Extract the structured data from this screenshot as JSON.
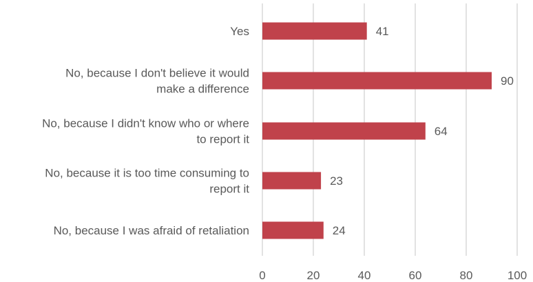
{
  "chart_data": {
    "type": "bar",
    "orientation": "horizontal",
    "categories": [
      [
        "Yes"
      ],
      [
        "No, because I don't believe it would",
        "make a difference"
      ],
      [
        "No, because I didn't know who or where",
        "to report it"
      ],
      [
        "No, because it is too time consuming to",
        "report it"
      ],
      [
        "No, because I was afraid of retaliation"
      ]
    ],
    "values": [
      41,
      90,
      64,
      23,
      24
    ],
    "xlim": [
      0,
      100
    ],
    "xticks": [
      0,
      20,
      40,
      60,
      80,
      100
    ],
    "grid": "vertical",
    "data_labels": true,
    "legend": "none",
    "colors": {
      "bar": "#c0424b",
      "grid": "#d9d9d9",
      "text": "#595959"
    }
  }
}
